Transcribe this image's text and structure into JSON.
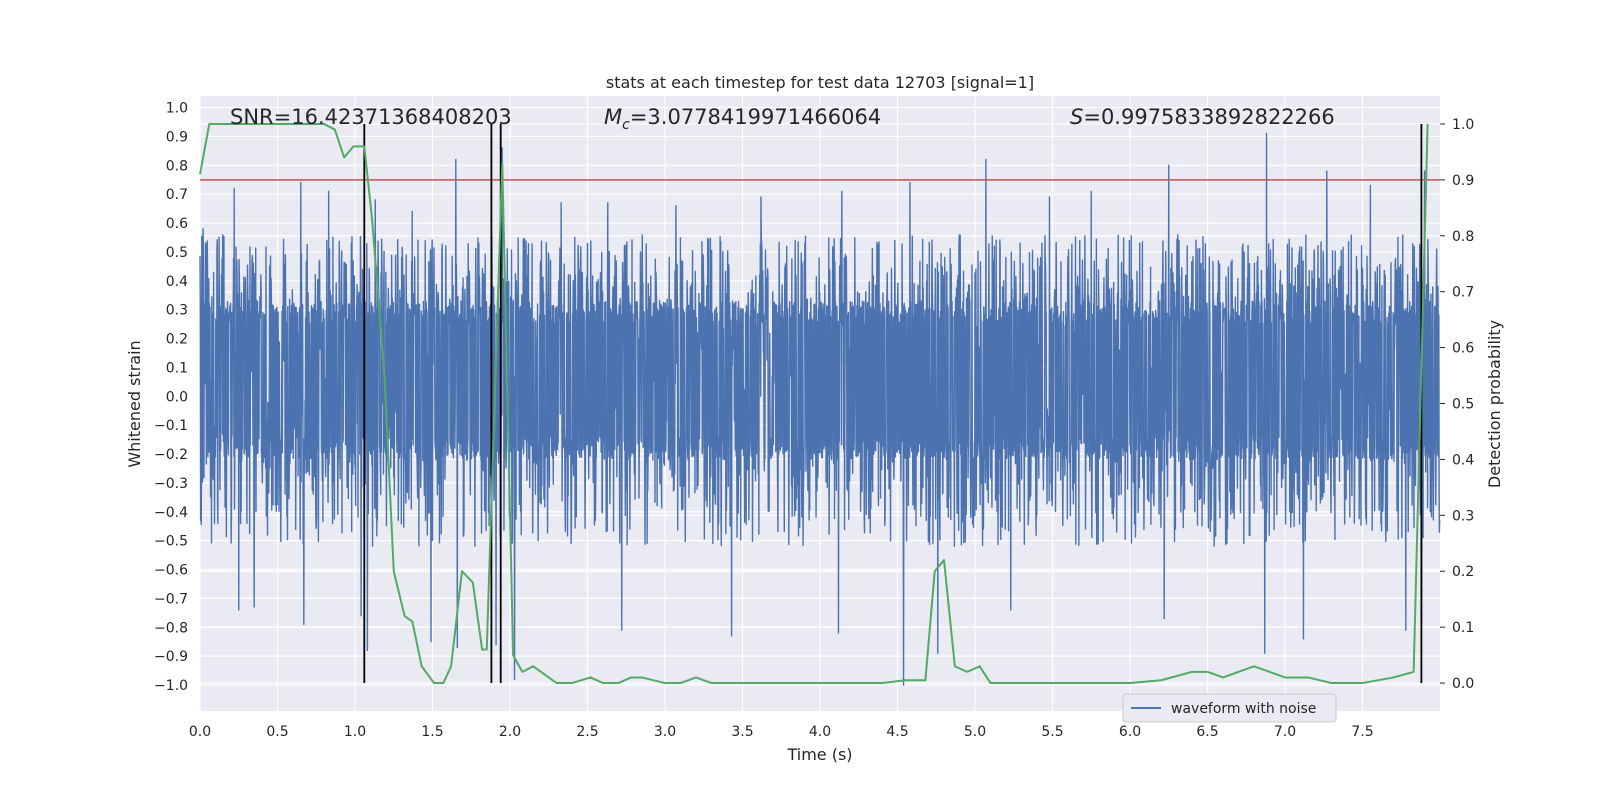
{
  "chart_data": {
    "type": "line",
    "title": "stats at each timestep for test data 12703 [signal=1]",
    "xlabel": "Time (s)",
    "ylabel": "Whitened strain",
    "y2label": "Detection probability",
    "xlim": [
      0.0,
      8.0
    ],
    "ylim": [
      -1.09,
      1.04
    ],
    "y2lim": [
      -0.05,
      1.05
    ],
    "xticks": [
      "0.0",
      "0.5",
      "1.0",
      "1.5",
      "2.0",
      "2.5",
      "3.0",
      "3.5",
      "4.0",
      "4.5",
      "5.0",
      "5.5",
      "6.0",
      "6.5",
      "7.0",
      "7.5"
    ],
    "yticks": [
      "1.0",
      "0.9",
      "0.8",
      "0.7",
      "0.6",
      "0.5",
      "0.4",
      "0.3",
      "0.2",
      "0.1",
      "0.0",
      "−0.1",
      "−0.2",
      "−0.3",
      "−0.4",
      "−0.5",
      "−0.6",
      "−0.7",
      "−0.8",
      "−0.9",
      "−1.0"
    ],
    "y2ticks": [
      "1.0",
      "0.9",
      "0.8",
      "0.7",
      "0.6",
      "0.5",
      "0.4",
      "0.3",
      "0.2",
      "0.1",
      "0.0"
    ],
    "annotations": {
      "snr": "SNR=16.42371368408203",
      "mc_symbol": "M",
      "mc_sub": "c",
      "mc_value": "=3.0778419971466064",
      "s_symbol": "S",
      "s_value": "=0.9975833892822266"
    },
    "legend": {
      "label": "waveform with noise",
      "placement": "lower-right"
    },
    "threshold": {
      "y2": 0.9,
      "color": "#c44e52"
    },
    "vertical_lines": [
      1.06,
      1.88,
      1.94,
      7.88
    ],
    "waveform": {
      "name": "waveform with noise",
      "color": "#4c72b0",
      "sample_rate_hz": 512,
      "duration_s": 8.0,
      "envelope": [
        -0.22,
        0.33
      ],
      "peaks": [
        [
          0.02,
          0.58
        ],
        [
          0.22,
          0.72
        ],
        [
          0.25,
          0.67
        ],
        [
          0.65,
          0.74
        ],
        [
          0.83,
          0.71
        ],
        [
          1.13,
          0.68
        ],
        [
          1.37,
          0.64
        ],
        [
          1.65,
          0.82
        ],
        [
          1.95,
          0.86
        ],
        [
          2.33,
          0.67
        ],
        [
          2.63,
          0.67
        ],
        [
          3.07,
          0.66
        ],
        [
          3.62,
          0.69
        ],
        [
          4.14,
          0.71
        ],
        [
          4.58,
          0.74
        ],
        [
          5.07,
          0.82
        ],
        [
          5.48,
          0.69
        ],
        [
          5.75,
          0.71
        ],
        [
          6.25,
          0.8
        ],
        [
          6.88,
          0.91
        ],
        [
          7.27,
          0.78
        ],
        [
          7.55,
          0.73
        ],
        [
          7.9,
          0.78
        ]
      ],
      "troughs": [
        [
          0.25,
          -0.74
        ],
        [
          0.35,
          -0.73
        ],
        [
          0.67,
          -0.79
        ],
        [
          1.04,
          -0.76
        ],
        [
          1.08,
          -0.88
        ],
        [
          1.49,
          -0.85
        ],
        [
          1.66,
          -0.87
        ],
        [
          1.91,
          -0.86
        ],
        [
          2.03,
          -0.98
        ],
        [
          2.72,
          -0.81
        ],
        [
          3.43,
          -0.83
        ],
        [
          4.12,
          -0.82
        ],
        [
          4.54,
          -1.0
        ],
        [
          4.76,
          -0.89
        ],
        [
          5.23,
          -0.74
        ],
        [
          6.22,
          -0.77
        ],
        [
          6.87,
          -0.89
        ],
        [
          7.12,
          -0.84
        ],
        [
          7.78,
          -0.81
        ],
        [
          7.88,
          -0.78
        ]
      ]
    },
    "detection_probability": {
      "name": "Detection probability",
      "color": "#55a868",
      "x": [
        0.0,
        0.06,
        0.2,
        0.4,
        0.6,
        0.8,
        0.87,
        0.93,
        0.99,
        1.06,
        1.11,
        1.19,
        1.25,
        1.32,
        1.37,
        1.43,
        1.51,
        1.57,
        1.62,
        1.69,
        1.76,
        1.82,
        1.85,
        1.95,
        2.02,
        2.08,
        2.15,
        2.2,
        2.3,
        2.4,
        2.52,
        2.6,
        2.7,
        2.78,
        2.85,
        3.0,
        3.1,
        3.2,
        3.3,
        3.5,
        3.6,
        3.8,
        4.0,
        4.2,
        4.4,
        4.55,
        4.68,
        4.74,
        4.8,
        4.87,
        4.95,
        5.03,
        5.1,
        5.3,
        5.6,
        6.0,
        6.2,
        6.4,
        6.5,
        6.6,
        6.8,
        6.9,
        7.0,
        7.15,
        7.3,
        7.5,
        7.7,
        7.83,
        7.92
      ],
      "y": [
        0.91,
        1.0,
        1.0,
        1.0,
        1.0,
        1.0,
        0.99,
        0.94,
        0.96,
        0.96,
        0.83,
        0.55,
        0.2,
        0.12,
        0.11,
        0.03,
        0.0,
        0.0,
        0.03,
        0.2,
        0.18,
        0.06,
        0.06,
        0.93,
        0.05,
        0.02,
        0.03,
        0.02,
        0.0,
        0.0,
        0.01,
        0.0,
        0.0,
        0.01,
        0.01,
        0.0,
        0.0,
        0.01,
        0.0,
        0.0,
        0.0,
        0.0,
        0.0,
        0.0,
        0.0,
        0.005,
        0.005,
        0.2,
        0.22,
        0.03,
        0.02,
        0.03,
        0.0,
        0.0,
        0.0,
        0.0,
        0.005,
        0.02,
        0.02,
        0.01,
        0.03,
        0.02,
        0.01,
        0.01,
        0.0,
        0.0,
        0.01,
        0.02,
        1.0
      ]
    }
  }
}
